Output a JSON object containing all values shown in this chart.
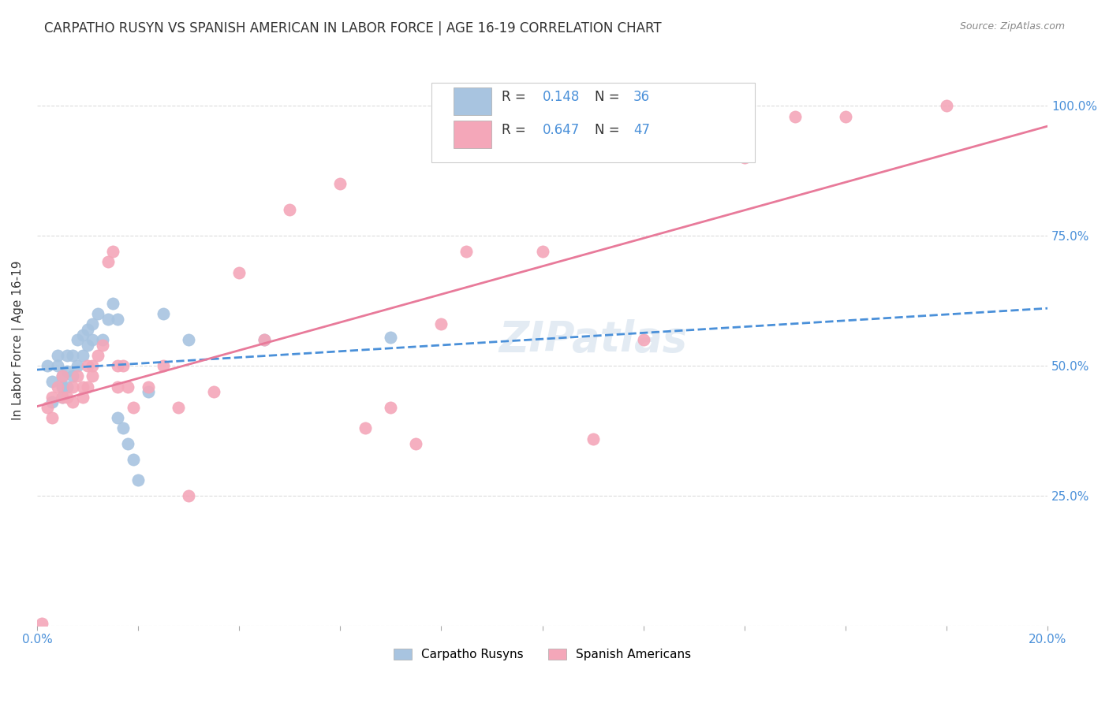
{
  "title": "CARPATHO RUSYN VS SPANISH AMERICAN IN LABOR FORCE | AGE 16-19 CORRELATION CHART",
  "source": "Source: ZipAtlas.com",
  "xlabel": "",
  "ylabel": "In Labor Force | Age 16-19",
  "xlim": [
    0.0,
    0.2
  ],
  "ylim": [
    0.0,
    1.1
  ],
  "yticks": [
    0.0,
    0.25,
    0.5,
    0.75,
    1.0
  ],
  "ytick_labels": [
    "",
    "25.0%",
    "50.0%",
    "75.0%",
    "100.0%"
  ],
  "xticks": [
    0.0,
    0.02,
    0.04,
    0.06,
    0.08,
    0.1,
    0.12,
    0.14,
    0.16,
    0.18,
    0.2
  ],
  "xtick_labels": [
    "0.0%",
    "",
    "",
    "",
    "",
    "",
    "",
    "",
    "",
    "",
    "20.0%"
  ],
  "blue_color": "#a8c4e0",
  "pink_color": "#f4a7b9",
  "blue_line_color": "#4a90d9",
  "pink_line_color": "#e87a9a",
  "legend_R_blue": "0.148",
  "legend_N_blue": "36",
  "legend_R_pink": "0.647",
  "legend_N_pink": "47",
  "blue_scatter_x": [
    0.002,
    0.003,
    0.003,
    0.004,
    0.004,
    0.005,
    0.005,
    0.005,
    0.006,
    0.006,
    0.006,
    0.007,
    0.007,
    0.008,
    0.008,
    0.009,
    0.009,
    0.01,
    0.01,
    0.011,
    0.011,
    0.012,
    0.013,
    0.014,
    0.015,
    0.016,
    0.016,
    0.017,
    0.018,
    0.019,
    0.02,
    0.022,
    0.025,
    0.03,
    0.045,
    0.07
  ],
  "blue_scatter_y": [
    0.5,
    0.47,
    0.43,
    0.52,
    0.5,
    0.48,
    0.46,
    0.44,
    0.52,
    0.49,
    0.46,
    0.52,
    0.48,
    0.55,
    0.5,
    0.56,
    0.52,
    0.57,
    0.54,
    0.58,
    0.55,
    0.6,
    0.55,
    0.59,
    0.62,
    0.59,
    0.4,
    0.38,
    0.35,
    0.32,
    0.28,
    0.45,
    0.6,
    0.55,
    0.55,
    0.555
  ],
  "pink_scatter_x": [
    0.001,
    0.002,
    0.003,
    0.003,
    0.004,
    0.005,
    0.005,
    0.006,
    0.007,
    0.007,
    0.008,
    0.009,
    0.009,
    0.01,
    0.01,
    0.011,
    0.011,
    0.012,
    0.013,
    0.014,
    0.015,
    0.016,
    0.016,
    0.017,
    0.018,
    0.019,
    0.022,
    0.025,
    0.028,
    0.03,
    0.035,
    0.04,
    0.045,
    0.05,
    0.06,
    0.065,
    0.07,
    0.075,
    0.08,
    0.085,
    0.1,
    0.11,
    0.12,
    0.14,
    0.15,
    0.16,
    0.18
  ],
  "pink_scatter_y": [
    0.005,
    0.42,
    0.4,
    0.44,
    0.46,
    0.44,
    0.48,
    0.44,
    0.46,
    0.43,
    0.48,
    0.44,
    0.46,
    0.5,
    0.46,
    0.5,
    0.48,
    0.52,
    0.54,
    0.7,
    0.72,
    0.5,
    0.46,
    0.5,
    0.46,
    0.42,
    0.46,
    0.5,
    0.42,
    0.25,
    0.45,
    0.68,
    0.55,
    0.8,
    0.85,
    0.38,
    0.42,
    0.35,
    0.58,
    0.72,
    0.72,
    0.36,
    0.55,
    0.9,
    0.98,
    0.98,
    1.0
  ],
  "watermark": "ZIPatlas",
  "background_color": "#ffffff",
  "grid_color": "#cccccc"
}
